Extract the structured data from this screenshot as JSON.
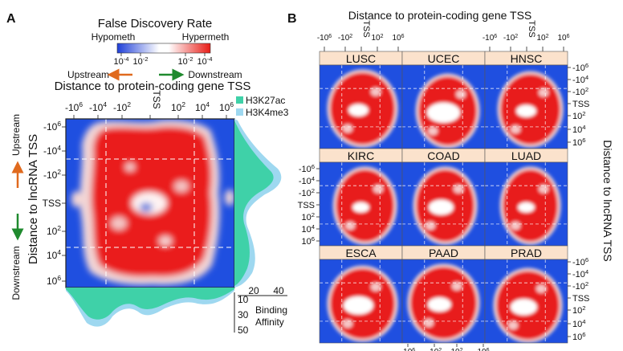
{
  "panel_a": {
    "label": "A",
    "legend": {
      "title": "False Discovery Rate",
      "hypo_label": "Hypometh",
      "hyper_label": "Hypermeth",
      "hypo_color": "#1f4fe0",
      "hyper_color": "#e8201c",
      "ticks": [
        "10",
        "10",
        "10",
        "10"
      ],
      "tick_exps": [
        "-4",
        "-2",
        "-2",
        "-4"
      ]
    },
    "upstream_label": "Upstream",
    "downstream_label": "Downstream",
    "x_title": "Distance to protein-coding gene TSS",
    "y_title": "Distance to lncRNA TSS",
    "y_upstream": "Upstream",
    "y_downstream": "Downstream",
    "x_ticks": [
      {
        "base": "-10",
        "exp": "6"
      },
      {
        "base": "-10",
        "exp": "4"
      },
      {
        "base": "-10",
        "exp": "2"
      },
      {
        "base": "TSS",
        "exp": ""
      },
      {
        "base": "10",
        "exp": "2"
      },
      {
        "base": "10",
        "exp": "4"
      },
      {
        "base": "10",
        "exp": "6"
      }
    ],
    "y_ticks": [
      {
        "base": "-10",
        "exp": "6"
      },
      {
        "base": "-10",
        "exp": "4"
      },
      {
        "base": "-10",
        "exp": "2"
      },
      {
        "base": "TSS",
        "exp": ""
      },
      {
        "base": "10",
        "exp": "2"
      },
      {
        "base": "10",
        "exp": "4"
      },
      {
        "base": "10",
        "exp": "6"
      }
    ],
    "marks": [
      "H3K27ac",
      "H3K4me3"
    ],
    "mark_colors": {
      "H3K27ac": "#3fd1a8",
      "H3K4me3": "#9ed8f0"
    },
    "binding_label": "Binding",
    "affinity_label": "Affinity",
    "binding_ticks": [
      "20",
      "40"
    ],
    "binding_ticks_vertical": [
      "10",
      "30",
      "50"
    ]
  },
  "panel_b": {
    "label": "B",
    "x_title": "Distance to protein-coding gene TSS",
    "y_title": "Distance to lncRNA TSS",
    "cancers": [
      "LUSC",
      "UCEC",
      "HNSC",
      "KIRC",
      "COAD",
      "LUAD",
      "ESCA",
      "PAAD",
      "PRAD"
    ],
    "top_ticks": [
      {
        "base": "-10",
        "exp": "6"
      },
      {
        "base": "-10",
        "exp": "2"
      },
      {
        "base": "TSS",
        "exp": ""
      },
      {
        "base": "10",
        "exp": "2"
      },
      {
        "base": "10",
        "exp": "6"
      }
    ],
    "right_ticks": [
      {
        "base": "-10",
        "exp": "6"
      },
      {
        "base": "-10",
        "exp": "4"
      },
      {
        "base": "-10",
        "exp": "2"
      },
      {
        "base": "TSS",
        "exp": ""
      },
      {
        "base": "10",
        "exp": "2"
      },
      {
        "base": "10",
        "exp": "4"
      },
      {
        "base": "10",
        "exp": "6"
      }
    ],
    "left_ticks": [
      {
        "base": "-10",
        "exp": "6"
      },
      {
        "base": "-10",
        "exp": "4"
      },
      {
        "base": "-10",
        "exp": "2"
      },
      {
        "base": "TSS",
        "exp": ""
      },
      {
        "base": "10",
        "exp": "2"
      },
      {
        "base": "10",
        "exp": "4"
      },
      {
        "base": "10",
        "exp": "6"
      }
    ],
    "bottom_ticks": [
      {
        "base": "-10",
        "exp": "6"
      },
      {
        "base": "-10",
        "exp": "2"
      },
      {
        "base": "10",
        "exp": "2"
      },
      {
        "base": "10",
        "exp": "6"
      }
    ],
    "header_color": "#fbe2cc"
  },
  "chart_data": [
    {
      "type": "heatmap",
      "panel": "A",
      "title": "False Discovery Rate",
      "xlabel": "Distance to protein-coding gene TSS",
      "ylabel": "Distance to lncRNA TSS",
      "x_ticks": [
        "-10^6",
        "-10^4",
        "-10^2",
        "TSS",
        "10^2",
        "10^4",
        "10^6"
      ],
      "y_ticks": [
        "-10^6",
        "-10^4",
        "-10^2",
        "TSS",
        "10^2",
        "10^4",
        "10^6"
      ],
      "color_scale": {
        "low": "Hypometh",
        "high": "Hypermeth",
        "ticks": [
          "10^-4",
          "10^-2",
          "10^-2",
          "10^-4"
        ]
      },
      "marginals": {
        "series": [
          "H3K27ac",
          "H3K4me3"
        ],
        "label": "Binding Affinity"
      }
    },
    {
      "type": "heatmap",
      "panel": "B",
      "xlabel": "Distance to protein-coding gene TSS",
      "ylabel": "Distance to lncRNA TSS",
      "facets": [
        "LUSC",
        "UCEC",
        "HNSC",
        "KIRC",
        "COAD",
        "LUAD",
        "ESCA",
        "PAAD",
        "PRAD"
      ]
    }
  ]
}
